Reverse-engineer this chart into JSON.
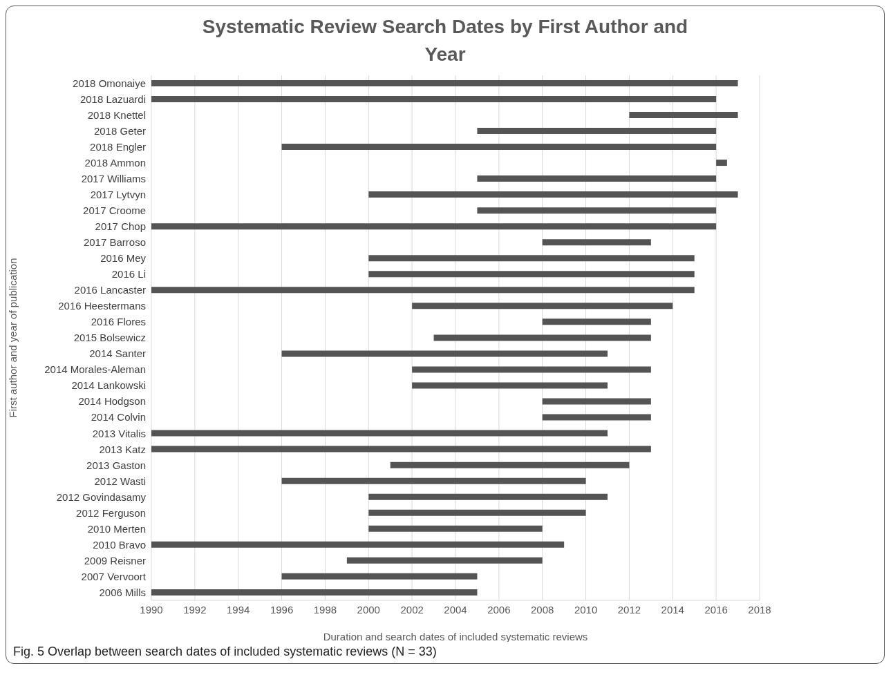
{
  "chart_data": {
    "type": "bar",
    "orientation": "horizontal",
    "title": "Systematic Review Search Dates by First Author and Year",
    "xlabel": "Duration and search dates of included systematic reviews",
    "ylabel": "First author and year of publication",
    "categories": [
      "2018 Omonaiye",
      "2018 Lazuardi",
      "2018 Knettel",
      "2018 Geter",
      "2018 Engler",
      "2018 Ammon",
      "2017 Williams",
      "2017 Lytvyn",
      "2017 Croome",
      "2017 Chop",
      "2017 Barroso",
      "2016 Mey",
      "2016 Li",
      "2016 Lancaster",
      "2016 Heestermans",
      "2016 Flores",
      "2015 Bolsewicz",
      "2014 Santer",
      "2014 Morales-Aleman",
      "2014 Lankowski",
      "2014 Hodgson",
      "2014 Colvin",
      "2013 Vitalis",
      "2013 Katz",
      "2013 Gaston",
      "2012 Wasti",
      "2012 Govindasamy",
      "2012 Ferguson",
      "2010 Merten",
      "2010 Bravo",
      "2009 Reisner",
      "2007 Vervoort",
      "2006 Mills"
    ],
    "base": [
      1990,
      1990,
      2012,
      2005,
      1996,
      2016,
      2005,
      2000,
      2005,
      1990,
      2008,
      2000,
      2000,
      1990,
      2002,
      2008,
      2003,
      1996,
      2002,
      2002,
      2008,
      2008,
      1990,
      1990,
      2001,
      1996,
      2000,
      2000,
      2000,
      1990,
      1999,
      1996,
      1990
    ],
    "values": [
      27,
      26,
      5,
      11,
      20,
      0.5,
      11,
      17,
      11,
      26,
      5,
      15,
      15,
      25,
      12,
      5,
      10,
      15,
      11,
      9,
      5,
      5,
      21,
      23,
      11,
      14,
      11,
      10,
      8,
      19,
      9,
      9,
      15
    ],
    "color": "#545454",
    "xlim": [
      1990,
      2018
    ],
    "xticks": [
      1990,
      1992,
      1994,
      1996,
      1998,
      2000,
      2002,
      2004,
      2006,
      2008,
      2010,
      2012,
      2014,
      2016,
      2018
    ],
    "grid": "x",
    "annotations": [
      "Fig. 5 Overlap between search dates of included systematic reviews (N = 33)"
    ]
  }
}
